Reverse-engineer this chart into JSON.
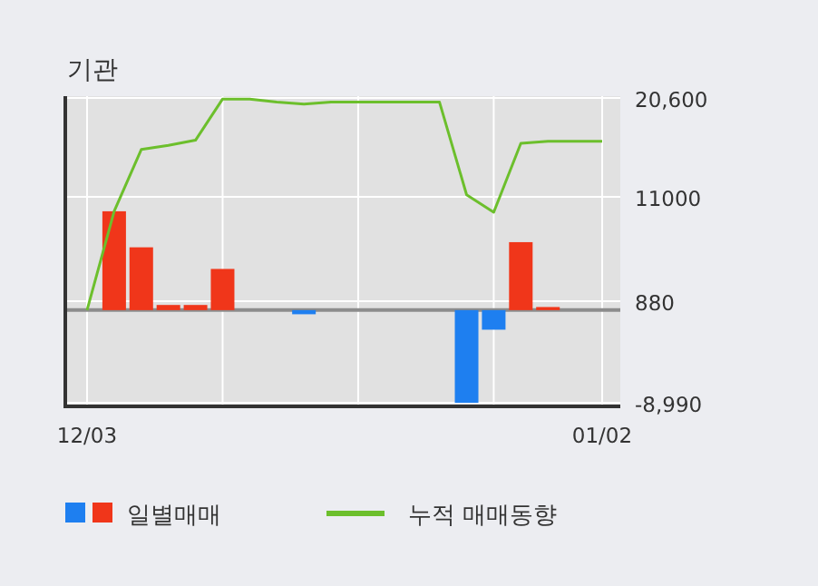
{
  "chart_data": {
    "type": "bar",
    "title": "기관",
    "categories": [
      "12/03",
      null,
      null,
      null,
      null,
      null,
      null,
      null,
      null,
      null,
      null,
      null,
      null,
      null,
      null,
      null,
      null,
      null,
      null,
      "01/02"
    ],
    "series": [
      {
        "name": "일별매매",
        "colors": [
          null,
          "#f0361a",
          "#f0361a",
          "#f0361a",
          "#f0361a",
          "#f0361a",
          null,
          null,
          "#1e7ff0",
          null,
          null,
          null,
          null,
          null,
          "#1e7ff0",
          "#1e7ff0",
          "#f0361a",
          "#f0361a",
          null,
          null
        ],
        "values": [
          0,
          9600,
          6100,
          500,
          500,
          4000,
          0,
          0,
          -400,
          0,
          0,
          0,
          0,
          0,
          -9000,
          -1900,
          6600,
          300,
          0,
          0
        ]
      },
      {
        "name": "누적 매매동향",
        "type": "line",
        "color": "#6cbf2c",
        "values": [
          0,
          9600,
          15600,
          16000,
          16500,
          20500,
          20500,
          20200,
          20000,
          20200,
          20200,
          20200,
          20200,
          20200,
          11200,
          9500,
          16200,
          16400,
          16400,
          16400
        ]
      }
    ],
    "ylim": [
      -9350,
      20780
    ],
    "yticks": [
      {
        "value": 20600,
        "label": "20,600"
      },
      11000,
      880,
      {
        "value": -8990,
        "label": "-8,990"
      }
    ],
    "grid": true,
    "legend": "bottom"
  }
}
